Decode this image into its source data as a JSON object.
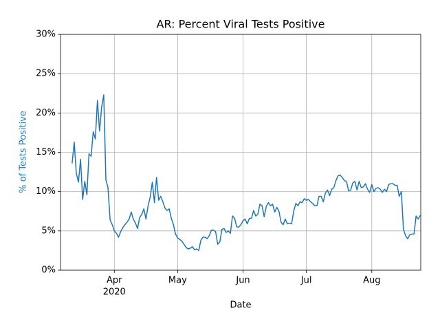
{
  "chart_data": {
    "type": "line",
    "title": "AR: Percent Viral Tests Positive",
    "x_label": "Date",
    "y_label": "% of Tests Positive",
    "y_label_color": "#1f77b4",
    "color": "#1f77b4",
    "grid": true,
    "values": [
      13.6,
      16.3,
      12.3,
      11.2,
      14.1,
      9.0,
      11.3,
      9.6,
      14.8,
      14.5,
      17.6,
      16.7,
      21.6,
      17.7,
      20.8,
      22.3,
      11.5,
      10.5,
      6.4,
      5.8,
      5.0,
      4.7,
      4.2,
      4.9,
      5.4,
      5.8,
      6.1,
      6.5,
      7.4,
      6.5,
      6.0,
      5.3,
      6.7,
      7.1,
      7.8,
      6.5,
      8.2,
      9.3,
      11.2,
      8.6,
      11.8,
      8.9,
      9.4,
      8.7,
      7.9,
      7.6,
      7.8,
      6.6,
      5.8,
      4.6,
      4.1,
      3.9,
      3.7,
      3.3,
      2.9,
      2.7,
      2.8,
      3.0,
      2.6,
      2.7,
      2.5,
      3.8,
      4.2,
      4.2,
      4.0,
      4.4,
      5.1,
      5.1,
      4.9,
      3.3,
      3.6,
      5.2,
      5.3,
      4.8,
      5.0,
      4.7,
      6.9,
      6.6,
      5.5,
      5.5,
      5.8,
      6.3,
      6.5,
      5.9,
      6.6,
      6.6,
      7.6,
      6.9,
      7.1,
      8.4,
      8.2,
      6.8,
      8.1,
      8.6,
      8.2,
      8.4,
      7.4,
      8.0,
      7.5,
      6.1,
      5.8,
      6.5,
      5.9,
      6.0,
      5.9,
      7.5,
      8.5,
      8.2,
      8.7,
      8.6,
      9.1,
      8.9,
      9.0,
      8.7,
      8.5,
      8.2,
      8.2,
      9.4,
      9.4,
      8.7,
      9.8,
      10.2,
      9.5,
      10.3,
      10.5,
      11.4,
      12.0,
      12.1,
      11.8,
      11.4,
      11.3,
      10.1,
      10.2,
      11.1,
      11.3,
      10.2,
      11.3,
      10.5,
      10.6,
      11.0,
      10.3,
      9.9,
      10.9,
      10.0,
      10.4,
      10.5,
      10.3,
      9.9,
      10.3,
      10.0,
      10.9,
      11.0,
      11.0,
      10.8,
      10.8,
      9.4,
      10.0,
      5.2,
      4.4,
      4.0,
      4.5,
      4.6,
      4.6,
      6.9,
      6.5,
      7.0
    ],
    "xlim": [
      -5.5,
      165.2
    ],
    "xticks": [
      {
        "value": 20,
        "label": "Apr"
      },
      {
        "value": 50,
        "label": "May"
      },
      {
        "value": 81,
        "label": "Jun"
      },
      {
        "value": 111,
        "label": "Jul"
      },
      {
        "value": 142,
        "label": "Aug"
      }
    ],
    "x_year_label": "2020",
    "ylim": [
      0,
      30
    ],
    "yticks": [
      {
        "value": 0,
        "label": "0%"
      },
      {
        "value": 5,
        "label": "5%"
      },
      {
        "value": 10,
        "label": "10%"
      },
      {
        "value": 15,
        "label": "15%"
      },
      {
        "value": 20,
        "label": "20%"
      },
      {
        "value": 25,
        "label": "25%"
      },
      {
        "value": 30,
        "label": "30%"
      }
    ]
  }
}
